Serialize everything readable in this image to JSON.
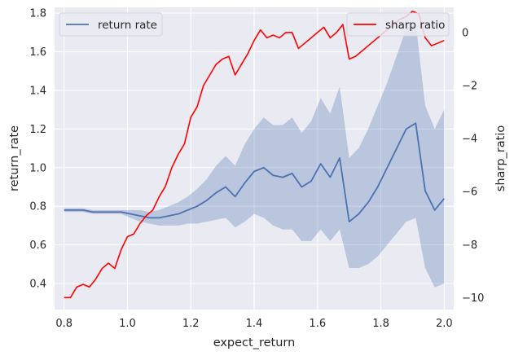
{
  "chart_data": {
    "type": "line",
    "xlabel": "expect_return",
    "ylabel": "return_rate",
    "y2label": "sharp_ratio",
    "xlim": [
      0.77,
      2.03
    ],
    "ylim": [
      0.265,
      1.83
    ],
    "y2lim": [
      -10.45,
      0.95
    ],
    "x_ticks": [
      0.8,
      1.0,
      1.2,
      1.4,
      1.6,
      1.8,
      2.0
    ],
    "x_tick_labels": [
      "0.8",
      "1.0",
      "1.2",
      "1.4",
      "1.6",
      "1.8",
      "2.0"
    ],
    "y_ticks": [
      0.4,
      0.6,
      0.8,
      1.0,
      1.2,
      1.4,
      1.6,
      1.8
    ],
    "y_tick_labels": [
      "0.4",
      "0.6",
      "0.8",
      "1.0",
      "1.2",
      "1.4",
      "1.6",
      "1.8"
    ],
    "y2_ticks": [
      -10,
      -8,
      -6,
      -4,
      -2,
      0
    ],
    "y2_tick_labels": [
      "−10",
      "−8",
      "−6",
      "−4",
      "−2",
      "0"
    ],
    "grid": true,
    "legends": [
      {
        "placement": "upper-left",
        "label": "return rate",
        "color": "#4c72b0"
      },
      {
        "placement": "upper-right",
        "label": "sharp ratio",
        "color": "#ff0000"
      }
    ],
    "series": [
      {
        "name": "return rate",
        "axis": "left",
        "color": "#4c72b0",
        "band_color": "#4c72b0",
        "x": [
          0.8,
          0.83,
          0.86,
          0.89,
          0.92,
          0.95,
          0.98,
          1.01,
          1.04,
          1.07,
          1.1,
          1.13,
          1.16,
          1.19,
          1.22,
          1.25,
          1.28,
          1.31,
          1.34,
          1.37,
          1.4,
          1.43,
          1.46,
          1.49,
          1.52,
          1.55,
          1.58,
          1.61,
          1.64,
          1.67,
          1.7,
          1.73,
          1.76,
          1.79,
          1.82,
          1.85,
          1.88,
          1.91,
          1.94,
          1.97,
          2.0
        ],
        "values": [
          0.78,
          0.78,
          0.78,
          0.77,
          0.77,
          0.77,
          0.77,
          0.76,
          0.75,
          0.74,
          0.74,
          0.75,
          0.76,
          0.78,
          0.8,
          0.83,
          0.87,
          0.9,
          0.85,
          0.92,
          0.98,
          1.0,
          0.96,
          0.95,
          0.97,
          0.9,
          0.93,
          1.02,
          0.95,
          1.05,
          0.72,
          0.76,
          0.82,
          0.9,
          1.0,
          1.1,
          1.2,
          1.23,
          0.88,
          0.78,
          0.84
        ],
        "lower": [
          0.77,
          0.77,
          0.77,
          0.76,
          0.76,
          0.76,
          0.76,
          0.74,
          0.72,
          0.71,
          0.7,
          0.7,
          0.7,
          0.71,
          0.71,
          0.72,
          0.73,
          0.74,
          0.69,
          0.72,
          0.76,
          0.74,
          0.7,
          0.68,
          0.68,
          0.62,
          0.62,
          0.68,
          0.62,
          0.68,
          0.48,
          0.48,
          0.5,
          0.54,
          0.6,
          0.66,
          0.72,
          0.74,
          0.48,
          0.38,
          0.4
        ],
        "upper": [
          0.79,
          0.79,
          0.79,
          0.78,
          0.78,
          0.78,
          0.78,
          0.78,
          0.78,
          0.77,
          0.78,
          0.8,
          0.82,
          0.85,
          0.89,
          0.94,
          1.01,
          1.06,
          1.01,
          1.12,
          1.2,
          1.26,
          1.22,
          1.22,
          1.26,
          1.18,
          1.24,
          1.36,
          1.28,
          1.42,
          1.05,
          1.1,
          1.2,
          1.32,
          1.44,
          1.58,
          1.72,
          1.75,
          1.32,
          1.2,
          1.3
        ]
      },
      {
        "name": "sharp ratio",
        "axis": "right",
        "color": "#ff0000",
        "x": [
          0.8,
          0.82,
          0.84,
          0.86,
          0.88,
          0.9,
          0.92,
          0.94,
          0.96,
          0.98,
          1.0,
          1.02,
          1.04,
          1.06,
          1.08,
          1.1,
          1.12,
          1.14,
          1.16,
          1.18,
          1.2,
          1.22,
          1.24,
          1.26,
          1.28,
          1.3,
          1.32,
          1.34,
          1.36,
          1.38,
          1.4,
          1.42,
          1.44,
          1.46,
          1.48,
          1.5,
          1.52,
          1.54,
          1.56,
          1.58,
          1.6,
          1.62,
          1.64,
          1.66,
          1.68,
          1.7,
          1.72,
          1.74,
          1.76,
          1.78,
          1.8,
          1.82,
          1.84,
          1.86,
          1.88,
          1.9,
          1.92,
          1.94,
          1.96,
          1.98,
          2.0
        ],
        "values": [
          -10.0,
          -10.0,
          -9.6,
          -9.5,
          -9.6,
          -9.3,
          -8.9,
          -8.7,
          -8.9,
          -8.2,
          -7.7,
          -7.6,
          -7.2,
          -6.9,
          -6.7,
          -6.2,
          -5.8,
          -5.1,
          -4.6,
          -4.2,
          -3.2,
          -2.8,
          -2.0,
          -1.6,
          -1.2,
          -1.0,
          -0.9,
          -1.6,
          -1.2,
          -0.8,
          -0.3,
          0.1,
          -0.2,
          -0.1,
          -0.2,
          0.0,
          0.0,
          -0.6,
          -0.4,
          -0.2,
          0.0,
          0.2,
          -0.2,
          0.0,
          0.3,
          -1.0,
          -0.9,
          -0.7,
          -0.5,
          -0.3,
          -0.1,
          0.1,
          0.3,
          0.5,
          0.6,
          0.8,
          0.7,
          -0.2,
          -0.5,
          -0.4,
          -0.3
        ]
      }
    ]
  }
}
